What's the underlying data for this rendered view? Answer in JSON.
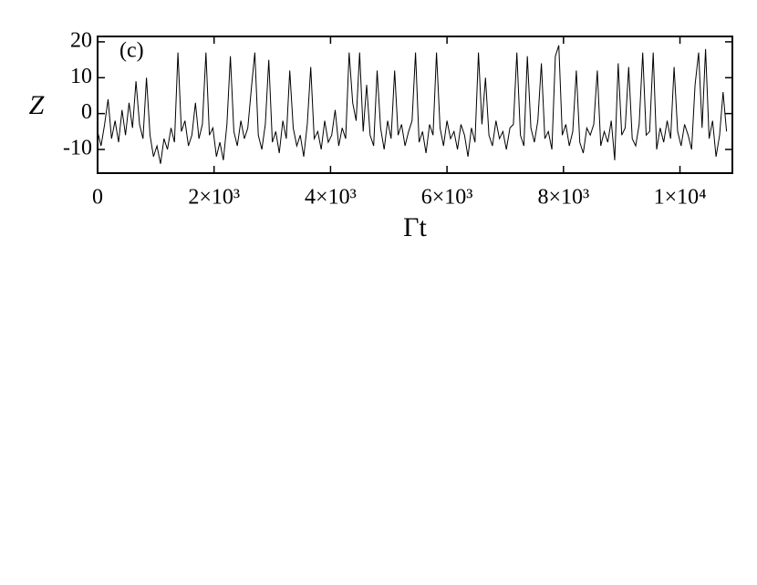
{
  "chart_data": {
    "type": "line",
    "annotation": "(c)",
    "x_label": "Γt",
    "y_label": "Z",
    "xlim": [
      0,
      10900
    ],
    "ylim": [
      -16.6,
      21.5
    ],
    "xticks": [
      0,
      {
        "value": 2000,
        "label": "2×10³"
      },
      {
        "value": 4000,
        "label": "4×10³"
      },
      {
        "value": 6000,
        "label": "6×10³"
      },
      {
        "value": 8000,
        "label": "8×10³"
      },
      {
        "value": 10000,
        "label": "1×10⁴"
      }
    ],
    "yticks": [
      -10,
      0,
      10,
      20
    ],
    "series": [
      {
        "color": "#000000",
        "x": [
          0,
          60,
          120,
          180,
          240,
          300,
          360,
          420,
          480,
          540,
          600,
          660,
          720,
          780,
          840,
          900,
          960,
          1020,
          1080,
          1140,
          1200,
          1260,
          1320,
          1380,
          1440,
          1500,
          1560,
          1620,
          1680,
          1740,
          1800,
          1860,
          1920,
          1980,
          2040,
          2100,
          2160,
          2220,
          2280,
          2340,
          2400,
          2460,
          2520,
          2580,
          2640,
          2700,
          2760,
          2820,
          2880,
          2940,
          3000,
          3060,
          3120,
          3180,
          3240,
          3300,
          3360,
          3420,
          3480,
          3540,
          3600,
          3660,
          3720,
          3780,
          3840,
          3900,
          3960,
          4020,
          4080,
          4140,
          4200,
          4260,
          4320,
          4380,
          4440,
          4500,
          4560,
          4620,
          4680,
          4740,
          4800,
          4860,
          4920,
          4980,
          5040,
          5100,
          5160,
          5220,
          5280,
          5340,
          5400,
          5460,
          5520,
          5580,
          5640,
          5700,
          5760,
          5820,
          5880,
          5940,
          6000,
          6060,
          6120,
          6180,
          6240,
          6300,
          6360,
          6420,
          6480,
          6540,
          6600,
          6660,
          6720,
          6780,
          6840,
          6900,
          6960,
          7020,
          7080,
          7140,
          7200,
          7260,
          7320,
          7380,
          7440,
          7500,
          7560,
          7620,
          7680,
          7740,
          7800,
          7860,
          7920,
          7980,
          8040,
          8100,
          8160,
          8220,
          8280,
          8340,
          8400,
          8460,
          8520,
          8580,
          8640,
          8700,
          8760,
          8820,
          8880,
          8940,
          9000,
          9060,
          9120,
          9180,
          9240,
          9300,
          9360,
          9420,
          9480,
          9540,
          9600,
          9660,
          9720,
          9780,
          9840,
          9900,
          9960,
          10020,
          10080,
          10140,
          10200,
          10260,
          10320,
          10380,
          10440,
          10500,
          10560,
          10620,
          10680,
          10740,
          10800
        ],
        "values": [
          -5,
          -9,
          -3,
          4,
          -7,
          -2,
          -8,
          1,
          -6,
          3,
          -4,
          9,
          -3,
          -7,
          10,
          -6,
          -12,
          -9,
          -14,
          -7,
          -10,
          -4,
          -8,
          17,
          -5,
          -2,
          -9,
          -6,
          3,
          -7,
          -3,
          17,
          -6,
          -4,
          -12,
          -8,
          -13,
          -3,
          16,
          -5,
          -9,
          -2,
          -7,
          -4,
          7,
          17,
          -6,
          -10,
          -3,
          15,
          -8,
          -5,
          -11,
          -2,
          -7,
          12,
          -4,
          -9,
          -6,
          -12,
          -3,
          13,
          -7,
          -5,
          -10,
          -2,
          -8,
          -6,
          1,
          -9,
          -4,
          -7,
          17,
          3,
          -2,
          17,
          -5,
          8,
          -6,
          -9,
          12,
          -4,
          -10,
          -2,
          -7,
          12,
          -6,
          -3,
          -9,
          -5,
          -2,
          17,
          -8,
          -5,
          -11,
          -3,
          -6,
          17,
          -4,
          -9,
          -2,
          -7,
          -5,
          -10,
          -3,
          -6,
          -12,
          -4,
          -8,
          17,
          -3,
          10,
          -6,
          -9,
          -2,
          -7,
          -5,
          -10,
          -4,
          -3,
          17,
          -6,
          -9,
          16,
          -4,
          -8,
          -2,
          14,
          -7,
          -5,
          -10,
          16,
          19,
          -6,
          -3,
          -9,
          -5,
          12,
          -8,
          -11,
          -4,
          -6,
          -3,
          12,
          -9,
          -5,
          -8,
          -2,
          -13,
          14,
          -6,
          -4,
          13,
          -7,
          -9,
          -3,
          17,
          -6,
          -5,
          17,
          -10,
          -4,
          -8,
          -2,
          -7,
          13,
          -5,
          -9,
          -3,
          -6,
          -10,
          8,
          17,
          -4,
          18,
          -7,
          -2,
          -12,
          -6,
          6,
          -5
        ]
      }
    ]
  }
}
